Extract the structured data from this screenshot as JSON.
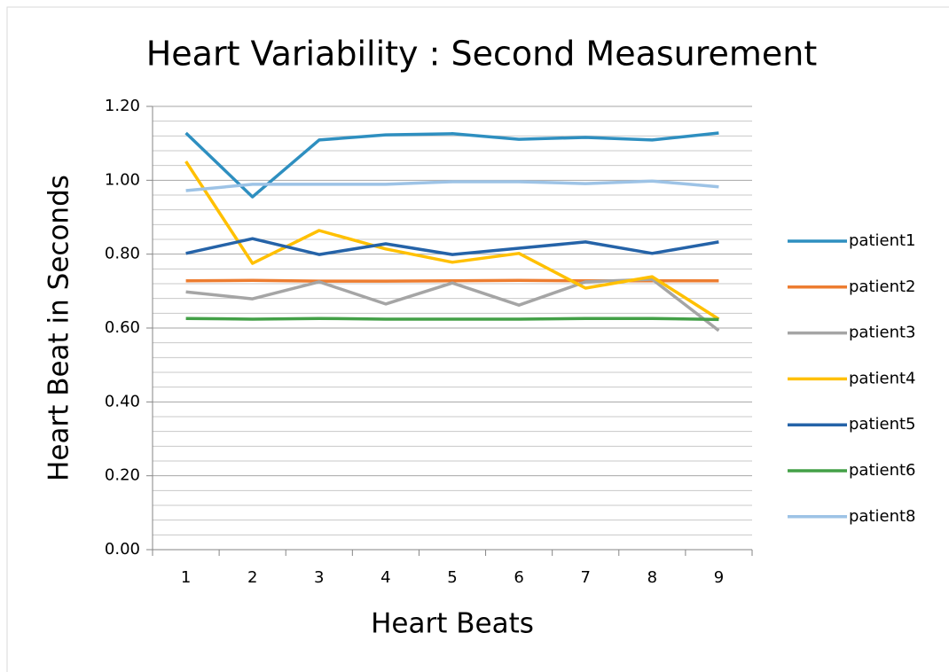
{
  "chart_data": {
    "type": "line",
    "title": "Heart Variability : Second Measurement",
    "x_label": "Heart Beats",
    "y_label": "Heart Beat in Seconds",
    "categories": [
      "1",
      "2",
      "3",
      "4",
      "5",
      "6",
      "7",
      "8",
      "9"
    ],
    "series": [
      {
        "name": "patient1",
        "color": "#2e8fc0",
        "values": [
          1.128,
          0.955,
          1.109,
          1.123,
          1.126,
          1.111,
          1.116,
          1.109,
          1.128
        ]
      },
      {
        "name": "patient2",
        "color": "#ed7d31",
        "values": [
          0.728,
          0.729,
          0.727,
          0.727,
          0.728,
          0.729,
          0.728,
          0.728,
          0.728
        ]
      },
      {
        "name": "patient3",
        "color": "#a5a5a5",
        "values": [
          0.698,
          0.679,
          0.725,
          0.665,
          0.722,
          0.662,
          0.725,
          0.732,
          0.593
        ]
      },
      {
        "name": "patient4",
        "color": "#ffc000",
        "values": [
          1.051,
          0.775,
          0.864,
          0.814,
          0.778,
          0.802,
          0.708,
          0.739,
          0.624
        ]
      },
      {
        "name": "patient5",
        "color": "#2563a8",
        "values": [
          0.802,
          0.842,
          0.799,
          0.828,
          0.799,
          0.816,
          0.833,
          0.802,
          0.833
        ]
      },
      {
        "name": "patient6",
        "color": "#43a047",
        "values": [
          0.626,
          0.624,
          0.626,
          0.624,
          0.624,
          0.624,
          0.626,
          0.626,
          0.623
        ]
      },
      {
        "name": "patient8",
        "color": "#9dc3e6",
        "values": [
          0.972,
          0.989,
          0.989,
          0.989,
          0.996,
          0.996,
          0.991,
          0.998,
          0.982
        ]
      }
    ],
    "ylim": [
      0,
      1.2
    ],
    "yticks": [
      {
        "value": 0,
        "label": "0.00"
      },
      {
        "value": 0.2,
        "label": "0.20"
      },
      {
        "value": 0.4,
        "label": "0.40"
      },
      {
        "value": 0.6,
        "label": "0.60"
      },
      {
        "value": 0.8,
        "label": "0.80"
      },
      {
        "value": 1.0,
        "label": "1.00"
      },
      {
        "value": 1.2,
        "label": "1.20"
      }
    ],
    "yticks_minor": [
      0.04,
      0.08,
      0.12,
      0.16,
      0.24,
      0.28,
      0.32,
      0.36,
      0.44,
      0.48,
      0.52,
      0.56,
      0.64,
      0.68,
      0.72,
      0.76,
      0.84,
      0.88,
      0.92,
      0.96,
      1.04,
      1.08,
      1.12,
      1.16
    ],
    "grid": true,
    "legend": "right"
  }
}
